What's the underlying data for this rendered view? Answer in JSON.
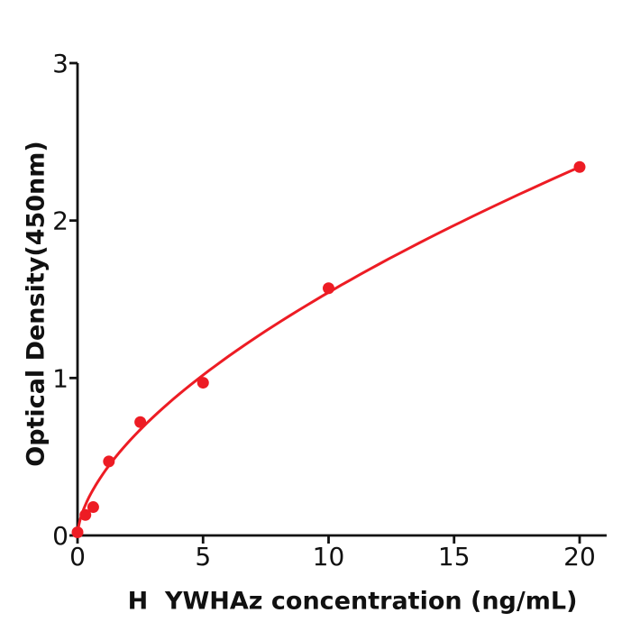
{
  "chart_data": {
    "type": "scatter",
    "title": "",
    "xlabel": "H  YWHAz concentration (ng/mL)",
    "ylabel": "Optical Density(450nm)",
    "points": [
      {
        "x": 0,
        "od": 0.02
      },
      {
        "x": 0.313,
        "od": 0.13
      },
      {
        "x": 0.625,
        "od": 0.18
      },
      {
        "x": 1.25,
        "od": 0.47
      },
      {
        "x": 2.5,
        "od": 0.72
      },
      {
        "x": 5,
        "od": 0.97
      },
      {
        "x": 10,
        "od": 1.57
      },
      {
        "x": 20,
        "od": 2.34
      }
    ],
    "x_ticks": [
      0,
      5,
      10,
      15,
      20
    ],
    "y_ticks": [
      0,
      1,
      2,
      3
    ],
    "xlim": [
      0,
      21.1
    ],
    "ylim": [
      0,
      3
    ],
    "grid": false,
    "legend": false,
    "fit_curve": {
      "type": "power",
      "a": 0.3878,
      "b": 0.6
    },
    "colors": {
      "series": "#ed1c24",
      "axis": "#111111",
      "background": "#ffffff"
    }
  }
}
